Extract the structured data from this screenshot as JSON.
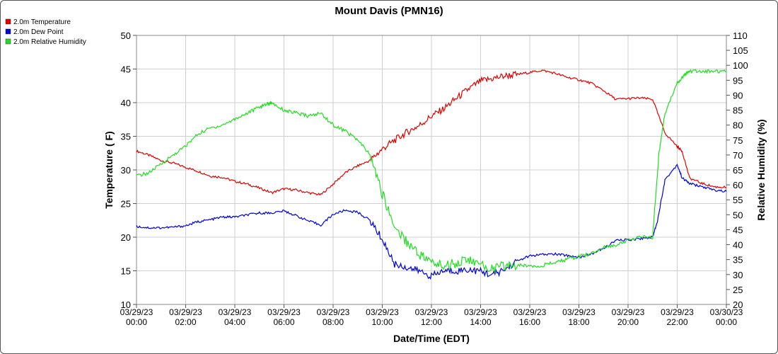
{
  "chart_data": {
    "type": "line",
    "title": "Mount Davis (PMN16)",
    "xlabel": "Date/Time (EDT)",
    "ylabel": "Temperature ( F)",
    "y2label": "Relative Humidity (%)",
    "ylim": [
      10,
      50
    ],
    "y2lim": [
      20,
      110
    ],
    "yticks": [
      "10",
      "15",
      "20",
      "25",
      "30",
      "35",
      "40",
      "45",
      "50"
    ],
    "y2ticks": [
      "20",
      "25",
      "30",
      "35",
      "40",
      "45",
      "50",
      "55",
      "60",
      "65",
      "70",
      "75",
      "80",
      "85",
      "90",
      "95",
      "100",
      "105",
      "110"
    ],
    "xlim": [
      0,
      24
    ],
    "x_unit": "hours since 03/29/23 00:00",
    "xticks": [
      {
        "date": "03/29/23",
        "time": "00:00"
      },
      {
        "date": "03/29/23",
        "time": "02:00"
      },
      {
        "date": "03/29/23",
        "time": "04:00"
      },
      {
        "date": "03/29/23",
        "time": "06:00"
      },
      {
        "date": "03/29/23",
        "time": "08:00"
      },
      {
        "date": "03/29/23",
        "time": "10:00"
      },
      {
        "date": "03/29/23",
        "time": "12:00"
      },
      {
        "date": "03/29/23",
        "time": "14:00"
      },
      {
        "date": "03/29/23",
        "time": "16:00"
      },
      {
        "date": "03/29/23",
        "time": "18:00"
      },
      {
        "date": "03/29/23",
        "time": "20:00"
      },
      {
        "date": "03/29/23",
        "time": "22:00"
      },
      {
        "date": "03/30/23",
        "time": "00:00"
      }
    ],
    "grid": true,
    "legend_position": "top-left",
    "series": [
      {
        "name": "2.0m Temperature",
        "color": "#e00000",
        "axis": "left",
        "x": [
          0,
          0.5,
          1,
          1.5,
          2,
          2.5,
          3,
          3.5,
          4,
          4.5,
          5,
          5.5,
          6,
          6.5,
          7,
          7.5,
          8,
          8.5,
          9,
          9.5,
          10,
          10.5,
          11,
          11.5,
          12,
          12.5,
          13,
          13.5,
          14,
          14.5,
          15,
          15.5,
          16,
          16.5,
          17,
          17.5,
          18,
          18.5,
          19,
          19.5,
          20,
          20.5,
          21,
          21.5,
          22,
          22.2,
          22.5,
          23,
          23.5,
          24
        ],
        "y": [
          32.8,
          32.2,
          31.4,
          31.0,
          30.4,
          29.8,
          29.1,
          28.9,
          28.3,
          27.9,
          27.3,
          26.6,
          27.2,
          27.0,
          26.6,
          26.3,
          27.9,
          29.6,
          30.6,
          31.4,
          33.1,
          34.4,
          35.6,
          36.6,
          38.0,
          39.1,
          40.6,
          42.0,
          43.2,
          43.6,
          44.0,
          44.2,
          44.5,
          44.8,
          44.4,
          43.8,
          43.4,
          42.9,
          41.8,
          40.5,
          40.6,
          40.7,
          40.5,
          35.5,
          33.5,
          32.8,
          28.8,
          28.0,
          27.5,
          27.4
        ]
      },
      {
        "name": "2.0m Dew Point",
        "color": "#0000dd",
        "axis": "left",
        "x": [
          0,
          0.5,
          1,
          1.5,
          2,
          2.5,
          3,
          3.5,
          4,
          4.5,
          5,
          5.5,
          6,
          6.5,
          7,
          7.5,
          8,
          8.5,
          9,
          9.5,
          10,
          10.5,
          11,
          11.5,
          12,
          12.5,
          13,
          13.5,
          14,
          14.5,
          15,
          15.5,
          16,
          16.5,
          17,
          17.5,
          18,
          18.5,
          19,
          19.5,
          20,
          20.5,
          21,
          21.2,
          21.5,
          22,
          22.2,
          22.5,
          23,
          23.5,
          24
        ],
        "y": [
          21.6,
          21.4,
          21.4,
          21.5,
          21.7,
          22.3,
          22.6,
          23.0,
          23.0,
          23.3,
          23.6,
          23.6,
          23.9,
          23.2,
          22.4,
          21.8,
          23.4,
          24.0,
          23.7,
          22.5,
          19.7,
          16.0,
          15.5,
          15.0,
          14.2,
          15.0,
          15.0,
          15.2,
          14.9,
          14.4,
          15.2,
          16.5,
          17.2,
          17.4,
          17.5,
          17.3,
          17.0,
          17.5,
          18.3,
          19.5,
          19.6,
          19.8,
          20.0,
          22.5,
          28.5,
          30.8,
          28.8,
          28.0,
          27.5,
          27.0,
          26.8
        ]
      },
      {
        "name": "2.0m Relative Humidity",
        "color": "#22dd22",
        "axis": "right",
        "x": [
          0,
          0.5,
          1,
          1.5,
          2,
          2.5,
          3,
          3.5,
          4,
          4.5,
          5,
          5.25,
          5.5,
          6,
          6.5,
          7,
          7.5,
          8,
          8.5,
          9,
          9.5,
          10,
          10.5,
          11,
          11.5,
          12,
          12.5,
          13,
          13.5,
          14,
          14.5,
          15,
          15.5,
          16,
          16.5,
          17,
          17.5,
          18,
          18.5,
          19,
          19.5,
          20,
          20.5,
          21,
          21.25,
          21.5,
          22,
          22.3,
          22.5,
          23,
          23.5,
          24
        ],
        "y": [
          63,
          64,
          67,
          70,
          73,
          77,
          79,
          80,
          82,
          84,
          86,
          87,
          87.5,
          85,
          84,
          83,
          84,
          80,
          78,
          75,
          70,
          57,
          46,
          41,
          37,
          34,
          33,
          34,
          35,
          33,
          32,
          33,
          33,
          33,
          33,
          34,
          35,
          36,
          37,
          39,
          40,
          41.5,
          42.5,
          42.5,
          70,
          84,
          94,
          97,
          98,
          98,
          98,
          98
        ]
      }
    ]
  }
}
